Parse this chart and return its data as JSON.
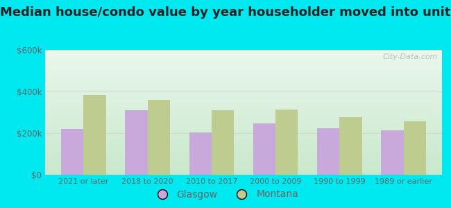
{
  "title": "Median house/condo value by year householder moved into unit",
  "categories": [
    "2021 or later",
    "2018 to 2020",
    "2010 to 2017",
    "2000 to 2009",
    "1990 to 1999",
    "1989 or earlier"
  ],
  "glasgow_values": [
    220000,
    310000,
    205000,
    248000,
    222000,
    213000
  ],
  "montana_values": [
    385000,
    360000,
    310000,
    315000,
    278000,
    258000
  ],
  "glasgow_color": "#c9a8dc",
  "montana_color": "#bfcc8f",
  "ylim": [
    0,
    600000
  ],
  "yticks": [
    0,
    200000,
    400000,
    600000
  ],
  "ytick_labels": [
    "$0",
    "$200k",
    "$400k",
    "$600k"
  ],
  "bar_width": 0.35,
  "bg_top": "#eaf7ec",
  "bg_bottom": "#c8e8cc",
  "outer_bg": "#00e8f0",
  "watermark": "City-Data.com",
  "legend_labels": [
    "Glasgow",
    "Montana"
  ],
  "title_fontsize": 13,
  "grid_color": "#d0d8d0",
  "tick_color": "#666666"
}
